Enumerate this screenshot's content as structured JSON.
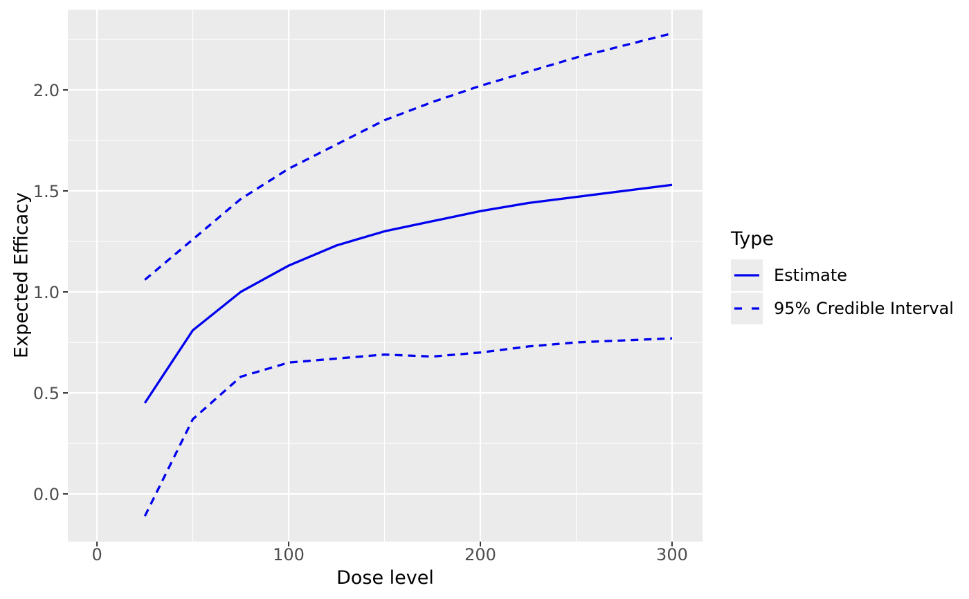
{
  "chart_data": {
    "type": "line",
    "title": "",
    "xlabel": "Dose level",
    "ylabel": "Expected Efficacy",
    "x": [
      25,
      50,
      75,
      100,
      125,
      150,
      175,
      200,
      225,
      250,
      275,
      300
    ],
    "series": [
      {
        "name": "Estimate",
        "line": "solid",
        "color": "#0000EE",
        "values": [
          0.45,
          0.81,
          1.0,
          1.13,
          1.23,
          1.3,
          1.35,
          1.4,
          1.44,
          1.47,
          1.5,
          1.53
        ]
      },
      {
        "name": "95% Credible Interval (upper)",
        "line": "dashed",
        "color": "#0000EE",
        "values": [
          1.06,
          1.26,
          1.46,
          1.61,
          1.73,
          1.85,
          1.94,
          2.02,
          2.09,
          2.16,
          2.22,
          2.28
        ]
      },
      {
        "name": "95% Credible Interval (lower)",
        "line": "dashed",
        "color": "#0000EE",
        "values": [
          -0.11,
          0.37,
          0.58,
          0.65,
          0.67,
          0.69,
          0.68,
          0.7,
          0.73,
          0.75,
          0.76,
          0.77
        ]
      }
    ],
    "axes": {
      "xticks": {
        "values": [
          0,
          100,
          200,
          300
        ],
        "labels": [
          "0",
          "100",
          "200",
          "300"
        ]
      },
      "yticks": {
        "values": [
          0.0,
          0.5,
          1.0,
          1.5,
          2.0
        ],
        "labels": [
          "0.0",
          "0.5",
          "1.0",
          "1.5",
          "2.0"
        ]
      },
      "x_minor": [
        50,
        150,
        250
      ],
      "y_minor": [
        0.25,
        0.75,
        1.25,
        1.75,
        2.25
      ],
      "xlim": [
        -15.2,
        315.9
      ],
      "ylim": [
        -0.236,
        2.397
      ]
    },
    "grid": "white-on-gray",
    "legend": {
      "title": "Type",
      "position": "right",
      "entries": [
        {
          "label": "Estimate",
          "line": "solid"
        },
        {
          "label": "95% Credible Interval",
          "line": "dashed"
        }
      ]
    }
  },
  "colors": {
    "line_blue": "#0000EE",
    "panel_background": "#EBEBEB",
    "gridline": "#FFFFFF",
    "tick_label": "#4D4D4D",
    "axis_title": "#000000",
    "legend_key_background": "#ECECEC",
    "tick_mark": "#333333"
  }
}
